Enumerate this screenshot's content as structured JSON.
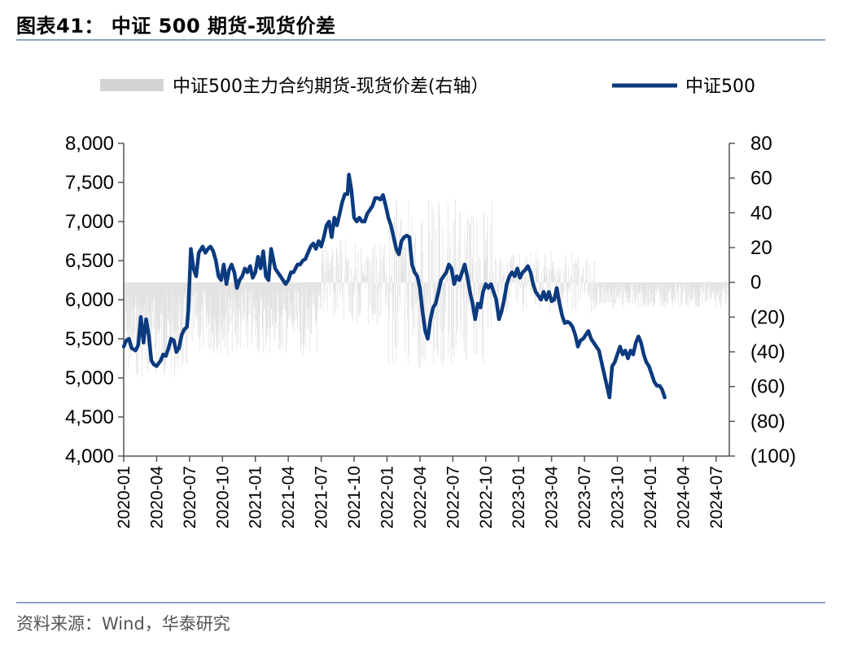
{
  "header": {
    "title": "图表41：  中证 500 期货-现货价差"
  },
  "footer": {
    "source": "资料来源：Wind，华泰研究"
  },
  "colors": {
    "line": "#0b3a7e",
    "bar": "#d4d4d4",
    "rule": "#8ea2c8"
  },
  "chart_data": {
    "type": "line",
    "legend": [
      {
        "name": "中证500主力合约期货-现货价差(右轴）",
        "style": "bar"
      },
      {
        "name": "中证500",
        "style": "line"
      }
    ],
    "y_left": {
      "min": 4000,
      "max": 8000,
      "ticks": [
        4000,
        4500,
        5000,
        5500,
        6000,
        6500,
        7000,
        7500,
        8000
      ],
      "tick_labels": [
        "4,000",
        "4,500",
        "5,000",
        "5,500",
        "6,000",
        "6,500",
        "7,000",
        "7,500",
        "8,000"
      ]
    },
    "y_right": {
      "min": -100,
      "max": 80,
      "ticks": [
        -100,
        -80,
        -60,
        -40,
        -20,
        0,
        20,
        40,
        60,
        80
      ],
      "tick_labels": [
        "(100)",
        "(80)",
        "(60)",
        "(40)",
        "(20)",
        "0",
        "20",
        "40",
        "60",
        "80"
      ]
    },
    "x_labels": [
      "2020-01",
      "2020-04",
      "2020-07",
      "2020-10",
      "2021-01",
      "2021-04",
      "2021-07",
      "2021-10",
      "2022-01",
      "2022-04",
      "2022-07",
      "2022-10",
      "2023-01",
      "2023-04",
      "2023-07",
      "2023-10",
      "2024-01",
      "2024-04",
      "2024-07"
    ],
    "x_range": [
      2020.0,
      2024.6
    ],
    "series": [
      {
        "name": "中证500",
        "points": [
          [
            2020.0,
            5400
          ],
          [
            2020.02,
            5480
          ],
          [
            2020.04,
            5500
          ],
          [
            2020.06,
            5380
          ],
          [
            2020.09,
            5350
          ],
          [
            2020.11,
            5420
          ],
          [
            2020.13,
            5780
          ],
          [
            2020.15,
            5450
          ],
          [
            2020.17,
            5750
          ],
          [
            2020.19,
            5550
          ],
          [
            2020.21,
            5220
          ],
          [
            2020.23,
            5170
          ],
          [
            2020.25,
            5150
          ],
          [
            2020.28,
            5220
          ],
          [
            2020.3,
            5300
          ],
          [
            2020.32,
            5280
          ],
          [
            2020.34,
            5380
          ],
          [
            2020.36,
            5500
          ],
          [
            2020.38,
            5480
          ],
          [
            2020.4,
            5330
          ],
          [
            2020.42,
            5380
          ],
          [
            2020.44,
            5550
          ],
          [
            2020.46,
            5620
          ],
          [
            2020.48,
            5650
          ],
          [
            2020.49,
            5850
          ],
          [
            2020.51,
            6650
          ],
          [
            2020.53,
            6400
          ],
          [
            2020.55,
            6300
          ],
          [
            2020.57,
            6600
          ],
          [
            2020.6,
            6680
          ],
          [
            2020.62,
            6600
          ],
          [
            2020.64,
            6650
          ],
          [
            2020.66,
            6680
          ],
          [
            2020.68,
            6620
          ],
          [
            2020.7,
            6500
          ],
          [
            2020.72,
            6300
          ],
          [
            2020.74,
            6250
          ],
          [
            2020.76,
            6450
          ],
          [
            2020.78,
            6200
          ],
          [
            2020.8,
            6380
          ],
          [
            2020.82,
            6450
          ],
          [
            2020.84,
            6350
          ],
          [
            2020.86,
            6150
          ],
          [
            2020.88,
            6250
          ],
          [
            2020.9,
            6300
          ],
          [
            2020.92,
            6400
          ],
          [
            2020.94,
            6350
          ],
          [
            2020.96,
            6430
          ],
          [
            2020.98,
            6280
          ],
          [
            2021.0,
            6350
          ],
          [
            2021.02,
            6550
          ],
          [
            2021.04,
            6400
          ],
          [
            2021.06,
            6620
          ],
          [
            2021.08,
            6300
          ],
          [
            2021.1,
            6250
          ],
          [
            2021.12,
            6650
          ],
          [
            2021.15,
            6400
          ],
          [
            2021.17,
            6350
          ],
          [
            2021.19,
            6300
          ],
          [
            2021.21,
            6250
          ],
          [
            2021.23,
            6200
          ],
          [
            2021.25,
            6250
          ],
          [
            2021.27,
            6350
          ],
          [
            2021.29,
            6350
          ],
          [
            2021.32,
            6450
          ],
          [
            2021.34,
            6450
          ],
          [
            2021.36,
            6500
          ],
          [
            2021.38,
            6520
          ],
          [
            2021.4,
            6600
          ],
          [
            2021.42,
            6680
          ],
          [
            2021.44,
            6720
          ],
          [
            2021.46,
            6650
          ],
          [
            2021.48,
            6750
          ],
          [
            2021.5,
            6680
          ],
          [
            2021.52,
            6800
          ],
          [
            2021.54,
            6950
          ],
          [
            2021.56,
            7000
          ],
          [
            2021.58,
            6800
          ],
          [
            2021.6,
            7050
          ],
          [
            2021.62,
            6950
          ],
          [
            2021.64,
            7100
          ],
          [
            2021.66,
            7250
          ],
          [
            2021.68,
            7350
          ],
          [
            2021.7,
            7350
          ],
          [
            2021.71,
            7600
          ],
          [
            2021.73,
            7400
          ],
          [
            2021.75,
            7050
          ],
          [
            2021.77,
            7000
          ],
          [
            2021.79,
            7050
          ],
          [
            2021.81,
            7000
          ],
          [
            2021.83,
            7000
          ],
          [
            2021.85,
            7100
          ],
          [
            2021.87,
            7150
          ],
          [
            2021.89,
            7200
          ],
          [
            2021.91,
            7300
          ],
          [
            2021.93,
            7300
          ],
          [
            2021.95,
            7280
          ],
          [
            2021.97,
            7340
          ],
          [
            2021.99,
            7200
          ],
          [
            2022.01,
            7050
          ],
          [
            2022.03,
            6950
          ],
          [
            2022.05,
            6800
          ],
          [
            2022.07,
            6650
          ],
          [
            2022.09,
            6580
          ],
          [
            2022.11,
            6750
          ],
          [
            2022.13,
            6800
          ],
          [
            2022.15,
            6820
          ],
          [
            2022.17,
            6800
          ],
          [
            2022.19,
            6450
          ],
          [
            2022.21,
            6350
          ],
          [
            2022.23,
            6300
          ],
          [
            2022.25,
            6150
          ],
          [
            2022.27,
            5850
          ],
          [
            2022.29,
            5600
          ],
          [
            2022.31,
            5500
          ],
          [
            2022.33,
            5750
          ],
          [
            2022.35,
            5900
          ],
          [
            2022.37,
            5950
          ],
          [
            2022.39,
            6100
          ],
          [
            2022.41,
            6250
          ],
          [
            2022.43,
            6300
          ],
          [
            2022.45,
            6350
          ],
          [
            2022.47,
            6450
          ],
          [
            2022.49,
            6400
          ],
          [
            2022.51,
            6200
          ],
          [
            2022.53,
            6300
          ],
          [
            2022.55,
            6250
          ],
          [
            2022.57,
            6350
          ],
          [
            2022.59,
            6450
          ],
          [
            2022.61,
            6300
          ],
          [
            2022.63,
            6100
          ],
          [
            2022.65,
            5950
          ],
          [
            2022.67,
            5750
          ],
          [
            2022.69,
            5950
          ],
          [
            2022.71,
            5900
          ],
          [
            2022.73,
            6100
          ],
          [
            2022.75,
            6200
          ],
          [
            2022.77,
            6150
          ],
          [
            2022.79,
            6200
          ],
          [
            2022.81,
            6100
          ],
          [
            2022.83,
            6000
          ],
          [
            2022.85,
            5750
          ],
          [
            2022.87,
            5850
          ],
          [
            2022.89,
            6000
          ],
          [
            2022.91,
            6200
          ],
          [
            2022.93,
            6300
          ],
          [
            2022.95,
            6350
          ],
          [
            2022.97,
            6300
          ],
          [
            2022.99,
            6400
          ],
          [
            2023.01,
            6280
          ],
          [
            2023.03,
            6350
          ],
          [
            2023.05,
            6380
          ],
          [
            2023.07,
            6430
          ],
          [
            2023.09,
            6350
          ],
          [
            2023.11,
            6200
          ],
          [
            2023.13,
            6100
          ],
          [
            2023.15,
            6050
          ],
          [
            2023.17,
            6000
          ],
          [
            2023.19,
            6100
          ],
          [
            2023.21,
            6000
          ],
          [
            2023.23,
            6100
          ],
          [
            2023.25,
            5980
          ],
          [
            2023.27,
            6000
          ],
          [
            2023.29,
            6150
          ],
          [
            2023.31,
            5950
          ],
          [
            2023.33,
            5800
          ],
          [
            2023.35,
            5700
          ],
          [
            2023.37,
            5720
          ],
          [
            2023.39,
            5700
          ],
          [
            2023.41,
            5650
          ],
          [
            2023.43,
            5550
          ],
          [
            2023.45,
            5400
          ],
          [
            2023.47,
            5480
          ],
          [
            2023.49,
            5500
          ],
          [
            2023.51,
            5550
          ],
          [
            2023.53,
            5600
          ],
          [
            2023.55,
            5500
          ],
          [
            2023.57,
            5450
          ],
          [
            2023.59,
            5400
          ],
          [
            2023.61,
            5350
          ],
          [
            2023.63,
            5200
          ],
          [
            2023.65,
            5050
          ],
          [
            2023.67,
            4900
          ],
          [
            2023.69,
            4750
          ],
          [
            2023.71,
            5150
          ],
          [
            2023.73,
            5200
          ],
          [
            2023.75,
            5300
          ],
          [
            2023.77,
            5400
          ],
          [
            2023.79,
            5300
          ],
          [
            2023.81,
            5350
          ],
          [
            2023.83,
            5250
          ],
          [
            2023.85,
            5350
          ],
          [
            2023.87,
            5300
          ],
          [
            2023.89,
            5450
          ],
          [
            2023.91,
            5530
          ],
          [
            2023.93,
            5450
          ],
          [
            2023.95,
            5300
          ],
          [
            2023.97,
            5200
          ],
          [
            2023.99,
            5150
          ],
          [
            2024.01,
            5050
          ],
          [
            2024.03,
            4950
          ],
          [
            2024.05,
            4900
          ],
          [
            2024.07,
            4900
          ],
          [
            2024.09,
            4850
          ],
          [
            2024.11,
            4750
          ]
        ]
      },
      {
        "name": "中证500主力合约期货-现货价差(右轴）",
        "style": "bars"
      }
    ]
  }
}
